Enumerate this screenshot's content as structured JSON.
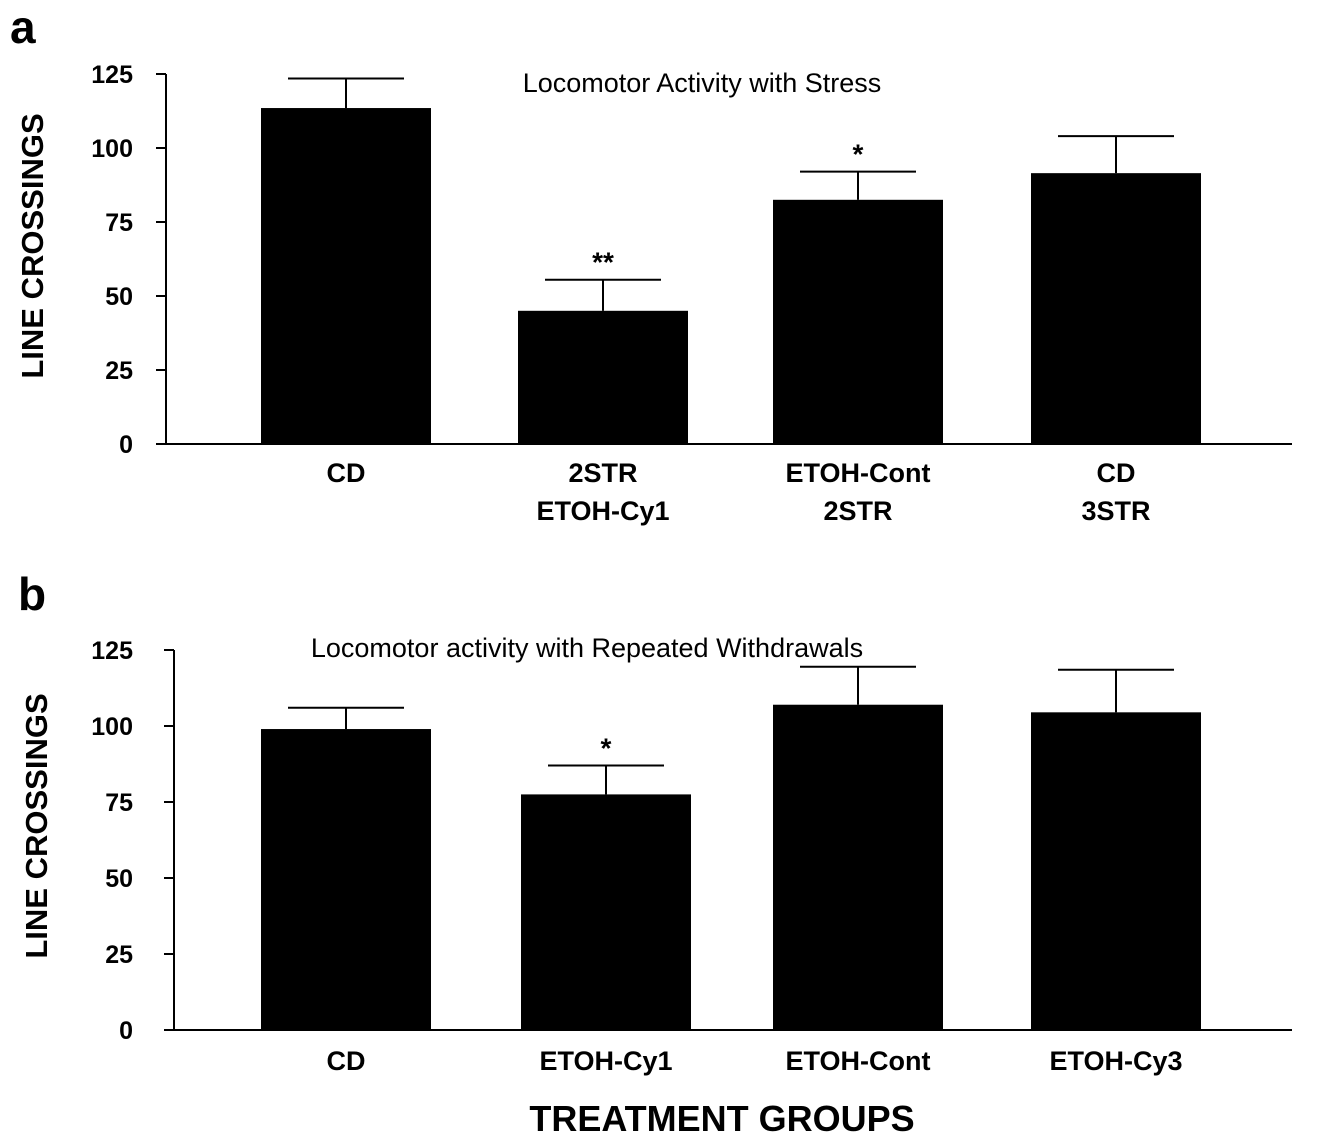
{
  "figure": {
    "xlabel": "TREATMENT GROUPS"
  },
  "chart_data": [
    {
      "type": "bar",
      "panel": "a",
      "title": "Locomotor Activity with Stress",
      "xlabel": "",
      "ylabel": "LINE CROSSINGS",
      "ylim": [
        0,
        125
      ],
      "yticks": [
        0,
        25,
        50,
        75,
        100,
        125
      ],
      "categories": [
        [
          "CD"
        ],
        [
          "2STR",
          "ETOH-Cy1"
        ],
        [
          "ETOH-Cont",
          "2STR"
        ],
        [
          "CD",
          "3STR"
        ]
      ],
      "values": [
        113.5,
        45,
        82.5,
        91.5
      ],
      "errors": [
        10,
        10.5,
        9.5,
        12.5
      ],
      "annotations": [
        "",
        "**",
        "*",
        ""
      ],
      "colors": {
        "bar": "#000000"
      }
    },
    {
      "type": "bar",
      "panel": "b",
      "title": "Locomotor activity with Repeated Withdrawals",
      "xlabel": "TREATMENT GROUPS",
      "ylabel": "LINE CROSSINGS",
      "ylim": [
        0,
        125
      ],
      "yticks": [
        0,
        25,
        50,
        75,
        100,
        125
      ],
      "categories": [
        [
          "CD"
        ],
        [
          "ETOH-Cy1"
        ],
        [
          "ETOH-Cont"
        ],
        [
          "ETOH-Cy3"
        ]
      ],
      "values": [
        99,
        77.5,
        107,
        104.5
      ],
      "errors": [
        7,
        9.5,
        12.5,
        14
      ],
      "annotations": [
        "",
        "*",
        "",
        ""
      ],
      "colors": {
        "bar": "#000000"
      }
    }
  ]
}
